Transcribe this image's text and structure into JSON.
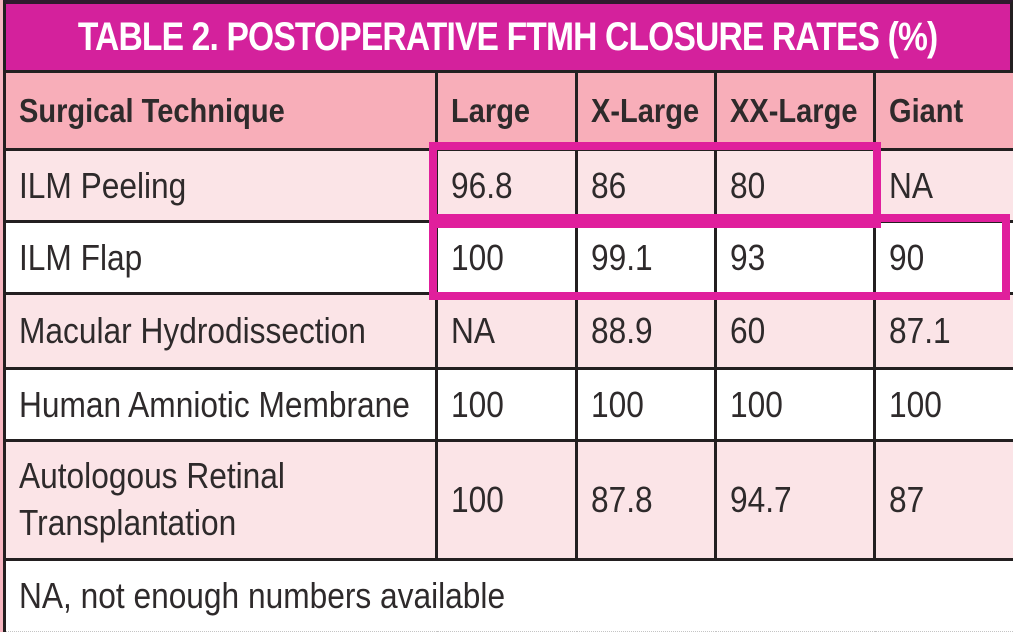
{
  "title": "TABLE 2. POSTOPERATIVE FTMH CLOSURE RATES (%)",
  "colors": {
    "title_bar": "#d4219c",
    "header_bg": "#f8aeb9",
    "row_pink": "#fbe4e7",
    "row_white": "#ffffff",
    "highlight": "#e01f9c",
    "border": "#231f20",
    "text": "#2e2a2b",
    "title_text": "#ffffff"
  },
  "table": {
    "columns": [
      "Surgical Technique",
      "Large",
      "X-Large",
      "XX-Large",
      "Giant"
    ],
    "rows": [
      {
        "technique": "ILM Peeling",
        "values": [
          "96.8",
          "86",
          "80",
          "NA"
        ]
      },
      {
        "technique": "ILM Flap",
        "values": [
          "100",
          "99.1",
          "93",
          "90"
        ]
      },
      {
        "technique": "Macular Hydrodissection",
        "values": [
          "NA",
          "88.9",
          "60",
          "87.1"
        ]
      },
      {
        "technique": "Human Amniotic Membrane",
        "values": [
          "100",
          "100",
          "100",
          "100"
        ]
      },
      {
        "technique": "Autologous Retinal Transplantation",
        "values": [
          "100",
          "87.8",
          "94.7",
          "87"
        ]
      }
    ],
    "footnote": "NA, not enough numbers available"
  },
  "highlights": [
    {
      "technique": "ILM Peeling",
      "columns": [
        "Large",
        "X-Large",
        "XX-Large"
      ]
    },
    {
      "technique": "ILM Flap",
      "columns": [
        "Large",
        "X-Large",
        "XX-Large",
        "Giant"
      ]
    }
  ]
}
